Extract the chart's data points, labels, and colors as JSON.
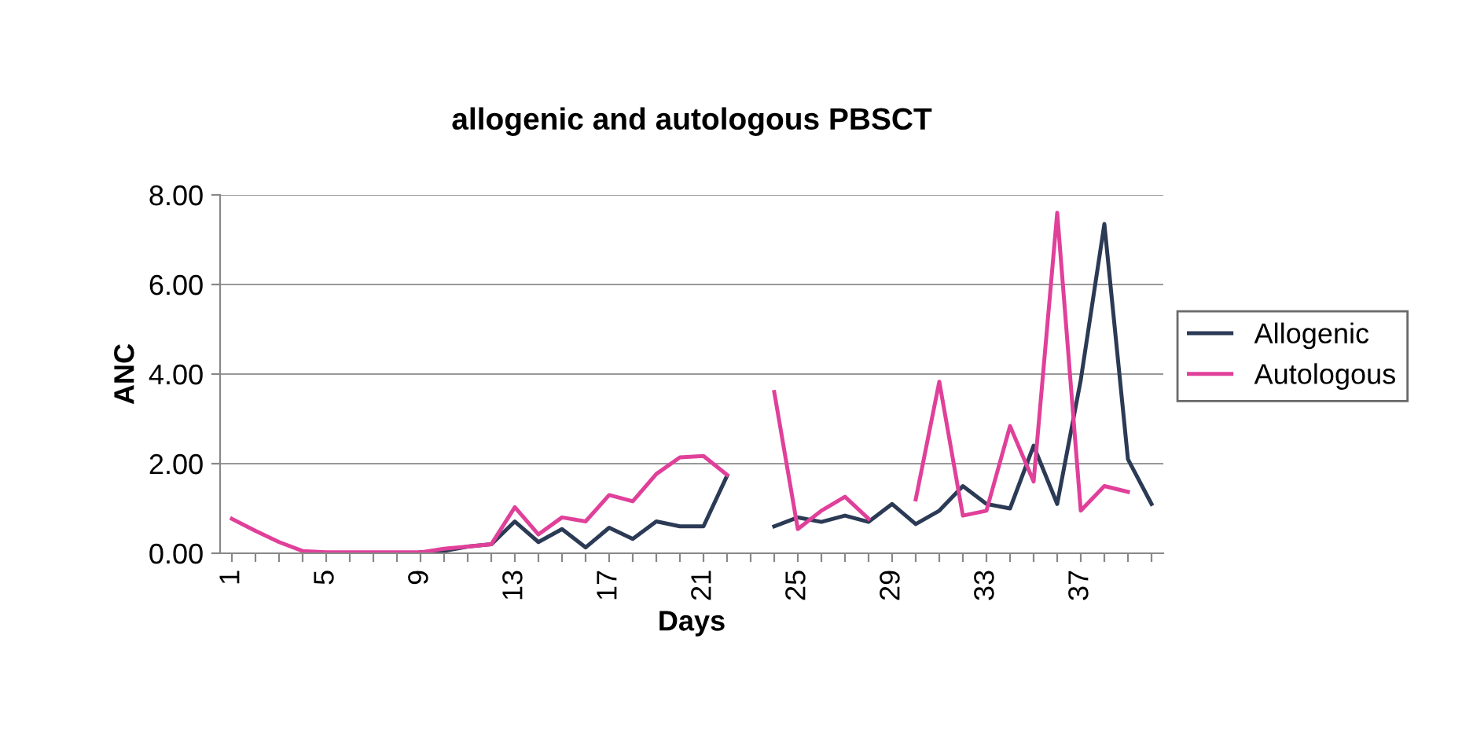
{
  "chart_data": {
    "type": "line",
    "title": "allogenic and autologous PBSCT",
    "xlabel": "Days",
    "ylabel": "ANC",
    "categories": [
      "1",
      null,
      null,
      null,
      "5",
      null,
      null,
      null,
      "9",
      null,
      null,
      null,
      "13",
      null,
      null,
      null,
      "17",
      null,
      null,
      null,
      "21",
      null,
      null,
      null,
      "25",
      null,
      null,
      null,
      "29",
      null,
      null,
      null,
      "33",
      null,
      null,
      null,
      "37",
      null,
      null,
      null
    ],
    "series": [
      {
        "name": "Allogenic",
        "color": "#2b3a55",
        "values": [
          null,
          null,
          null,
          null,
          null,
          null,
          null,
          null,
          0.02,
          0.05,
          0.15,
          0.2,
          0.71,
          0.25,
          0.54,
          0.13,
          0.57,
          0.32,
          0.71,
          0.6,
          0.6,
          1.73,
          null,
          0.6,
          0.8,
          0.7,
          0.84,
          0.7,
          1.1,
          0.65,
          0.95,
          1.5,
          1.1,
          1.0,
          2.4,
          1.1,
          3.87,
          7.35,
          2.1,
          1.1
        ]
      },
      {
        "name": "Autologous",
        "color": "#e0409a",
        "values": [
          0.77,
          0.5,
          0.25,
          0.05,
          0.02,
          0.02,
          0.02,
          0.02,
          0.02,
          0.1,
          0.15,
          0.2,
          1.03,
          0.42,
          0.8,
          0.71,
          1.3,
          1.16,
          1.77,
          2.14,
          2.17,
          1.75,
          null,
          3.6,
          0.54,
          0.95,
          1.26,
          0.77,
          null,
          1.2,
          3.83,
          0.84,
          0.95,
          2.84,
          1.6,
          7.6,
          0.95,
          1.5,
          1.37,
          null
        ]
      }
    ],
    "ylim": [
      0,
      8
    ],
    "yticks": [
      {
        "value": 0,
        "label": "0.00"
      },
      {
        "value": 2,
        "label": "2.00"
      },
      {
        "value": 4,
        "label": "4.00"
      },
      {
        "value": 6,
        "label": "6.00"
      },
      {
        "value": 8,
        "label": "8.00"
      }
    ],
    "grid": "y",
    "legend": "right",
    "marker": "none",
    "line_style": "solid"
  }
}
